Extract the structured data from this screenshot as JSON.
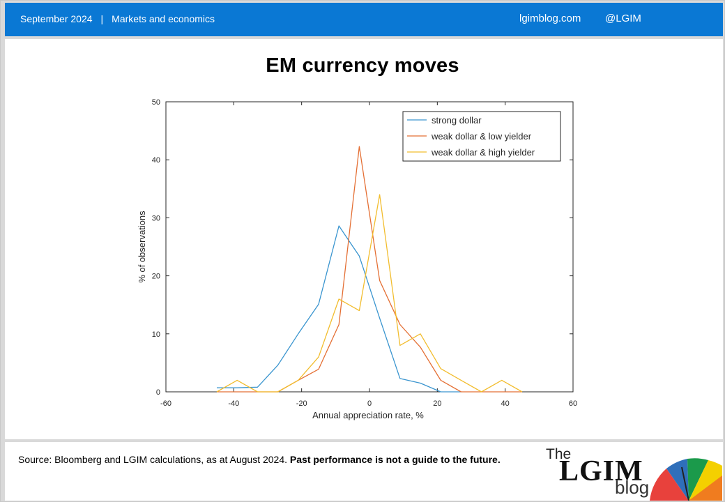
{
  "header": {
    "date": "September 2024",
    "separator": "|",
    "section": "Markets and economics",
    "site": "lgimblog.com",
    "handle": "@LGIM"
  },
  "footer": {
    "source_text": "Source: Bloomberg and LGIM  calculations, as at August 2024. ",
    "disclaimer": "Past performance is not a guide to the future.",
    "logo_the": "The",
    "logo_main": "LGIM",
    "logo_blog": "blog"
  },
  "colors": {
    "header_bg": "#0a78d4",
    "strong_dollar": "#3a95cf",
    "weak_dollar_low_yielder": "#e46f34",
    "weak_dollar_high_yielder": "#f2bd2e"
  },
  "chart_data": {
    "type": "line",
    "title": "EM currency moves",
    "xlabel": "Annual appreciation rate, %",
    "ylabel": "% of observations",
    "xlim": [
      -60,
      60
    ],
    "ylim": [
      0,
      50
    ],
    "xticks": [
      -60,
      -40,
      -20,
      0,
      20,
      40,
      60
    ],
    "yticks": [
      0,
      10,
      20,
      30,
      40,
      50
    ],
    "xtick_labels": [
      "-60",
      "-40",
      "-20",
      "0",
      "20",
      "40",
      "60"
    ],
    "ytick_labels": [
      "0",
      "10",
      "20",
      "30",
      "40",
      "50"
    ],
    "grid": false,
    "legend_position": "top-right",
    "series": [
      {
        "name": "strong dollar",
        "color": "#3a95cf",
        "x": [
          -45,
          -39,
          -33,
          -27,
          -21,
          -15,
          -9,
          -3,
          3,
          9,
          15,
          21,
          27
        ],
        "y": [
          0.7,
          0.7,
          0.8,
          4.6,
          10.0,
          15.1,
          28.6,
          23.4,
          12.7,
          2.3,
          1.5,
          0,
          0
        ]
      },
      {
        "name": "weak dollar & low yielder",
        "color": "#e46f34",
        "x": [
          -45,
          -39,
          -33,
          -27,
          -21,
          -15,
          -9,
          -3,
          3,
          9,
          15,
          21,
          27,
          33,
          39,
          45
        ],
        "y": [
          0,
          0,
          0,
          0,
          2.0,
          3.9,
          11.6,
          42.3,
          19.2,
          11.6,
          7.7,
          2.0,
          0,
          0,
          0,
          0
        ]
      },
      {
        "name": "weak dollar & high yielder",
        "color": "#f2bd2e",
        "x": [
          -45,
          -39,
          -33,
          -27,
          -21,
          -15,
          -9,
          -3,
          3,
          9,
          15,
          21,
          27,
          33,
          39,
          45
        ],
        "y": [
          0,
          2.0,
          0,
          0,
          2.0,
          6.0,
          16.0,
          14.0,
          34.0,
          8.0,
          10.0,
          4.0,
          2.0,
          0,
          2.0,
          0
        ]
      }
    ]
  }
}
